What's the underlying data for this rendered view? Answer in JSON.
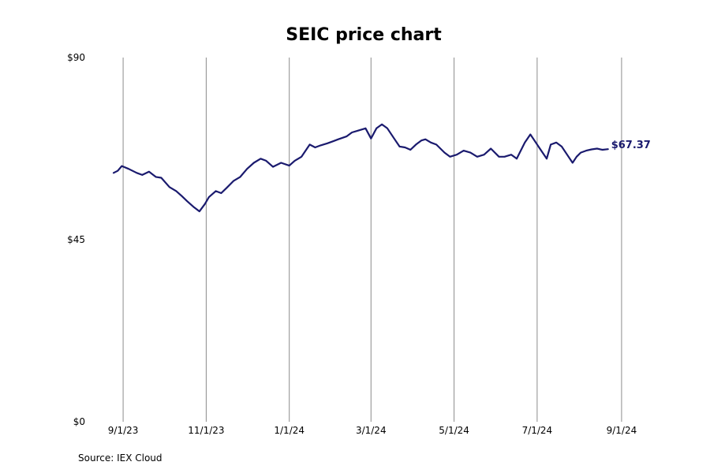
{
  "chart_data": {
    "type": "line",
    "title": "SEIC price chart",
    "xlabel": "",
    "ylabel": "",
    "ylim": [
      0,
      90
    ],
    "y_ticks": [
      {
        "value": 0,
        "label": "$0"
      },
      {
        "value": 45,
        "label": "$45"
      },
      {
        "value": 90,
        "label": "$90"
      }
    ],
    "x_range": [
      "2023-08-25",
      "2024-09-08"
    ],
    "x_ticks": [
      {
        "date": "2023-09-01",
        "label": "9/1/23"
      },
      {
        "date": "2023-11-01",
        "label": "11/1/23"
      },
      {
        "date": "2024-01-01",
        "label": "1/1/24"
      },
      {
        "date": "2024-03-01",
        "label": "3/1/24"
      },
      {
        "date": "2024-05-01",
        "label": "5/1/24"
      },
      {
        "date": "2024-07-01",
        "label": "7/1/24"
      },
      {
        "date": "2024-09-01",
        "label": "9/1/24"
      }
    ],
    "grid": {
      "vertical": true,
      "horizontal": false
    },
    "line_color": "#1a1a6e",
    "grid_color": "#8c8c8c",
    "last_value_label": "$67.37",
    "series": [
      {
        "x": [
          "2023-08-25",
          "2023-08-28",
          "2023-08-31",
          "2023-09-05",
          "2023-09-11",
          "2023-09-15",
          "2023-09-20",
          "2023-09-25",
          "2023-09-29",
          "2023-10-05",
          "2023-10-10",
          "2023-10-14",
          "2023-10-18",
          "2023-10-23",
          "2023-10-27",
          "2023-10-31",
          "2023-11-03",
          "2023-11-08",
          "2023-11-12",
          "2023-11-16",
          "2023-11-21",
          "2023-11-26",
          "2023-12-01",
          "2023-12-06",
          "2023-12-11",
          "2023-12-15",
          "2023-12-20",
          "2023-12-26",
          "2024-01-01",
          "2024-01-05",
          "2024-01-10",
          "2024-01-16",
          "2024-01-20",
          "2024-01-24",
          "2024-01-29",
          "2024-02-02",
          "2024-02-06",
          "2024-02-12",
          "2024-02-16",
          "2024-02-21",
          "2024-02-26",
          "2024-03-01",
          "2024-03-05",
          "2024-03-09",
          "2024-03-13",
          "2024-03-18",
          "2024-03-22",
          "2024-03-26",
          "2024-03-30",
          "2024-04-03",
          "2024-04-07",
          "2024-04-10",
          "2024-04-14",
          "2024-04-18",
          "2024-04-24",
          "2024-04-28",
          "2024-05-03",
          "2024-05-08",
          "2024-05-13",
          "2024-05-18",
          "2024-05-23",
          "2024-05-28",
          "2024-06-03",
          "2024-06-07",
          "2024-06-12",
          "2024-06-16",
          "2024-06-22",
          "2024-06-26",
          "2024-06-30",
          "2024-07-04",
          "2024-07-08",
          "2024-07-11",
          "2024-07-15",
          "2024-07-19",
          "2024-07-23",
          "2024-07-27",
          "2024-07-30",
          "2024-08-02",
          "2024-08-06",
          "2024-08-10",
          "2024-08-14",
          "2024-08-18",
          "2024-08-22"
        ],
        "values": [
          61.5,
          62.0,
          63.2,
          62.5,
          61.5,
          61.0,
          61.8,
          60.5,
          60.3,
          58.0,
          57.0,
          55.8,
          54.5,
          53.0,
          52.0,
          53.8,
          55.5,
          57.0,
          56.5,
          57.8,
          59.5,
          60.5,
          62.5,
          64.0,
          65.0,
          64.5,
          63.0,
          64.0,
          63.3,
          64.5,
          65.5,
          68.5,
          67.8,
          68.3,
          68.8,
          69.3,
          69.8,
          70.5,
          71.5,
          72.0,
          72.5,
          70.0,
          72.5,
          73.5,
          72.5,
          70.0,
          68.0,
          67.8,
          67.2,
          68.5,
          69.5,
          69.8,
          69.0,
          68.5,
          66.5,
          65.5,
          66.0,
          67.0,
          66.5,
          65.5,
          66.0,
          67.5,
          65.5,
          65.5,
          66.0,
          65.0,
          69.0,
          71.0,
          69.0,
          67.0,
          65.0,
          68.5,
          69.0,
          68.0,
          66.0,
          64.0,
          65.5,
          66.5,
          67.0,
          67.3,
          67.5,
          67.2,
          67.37
        ]
      }
    ]
  },
  "footer": {
    "source_text": "Source: IEX Cloud"
  }
}
